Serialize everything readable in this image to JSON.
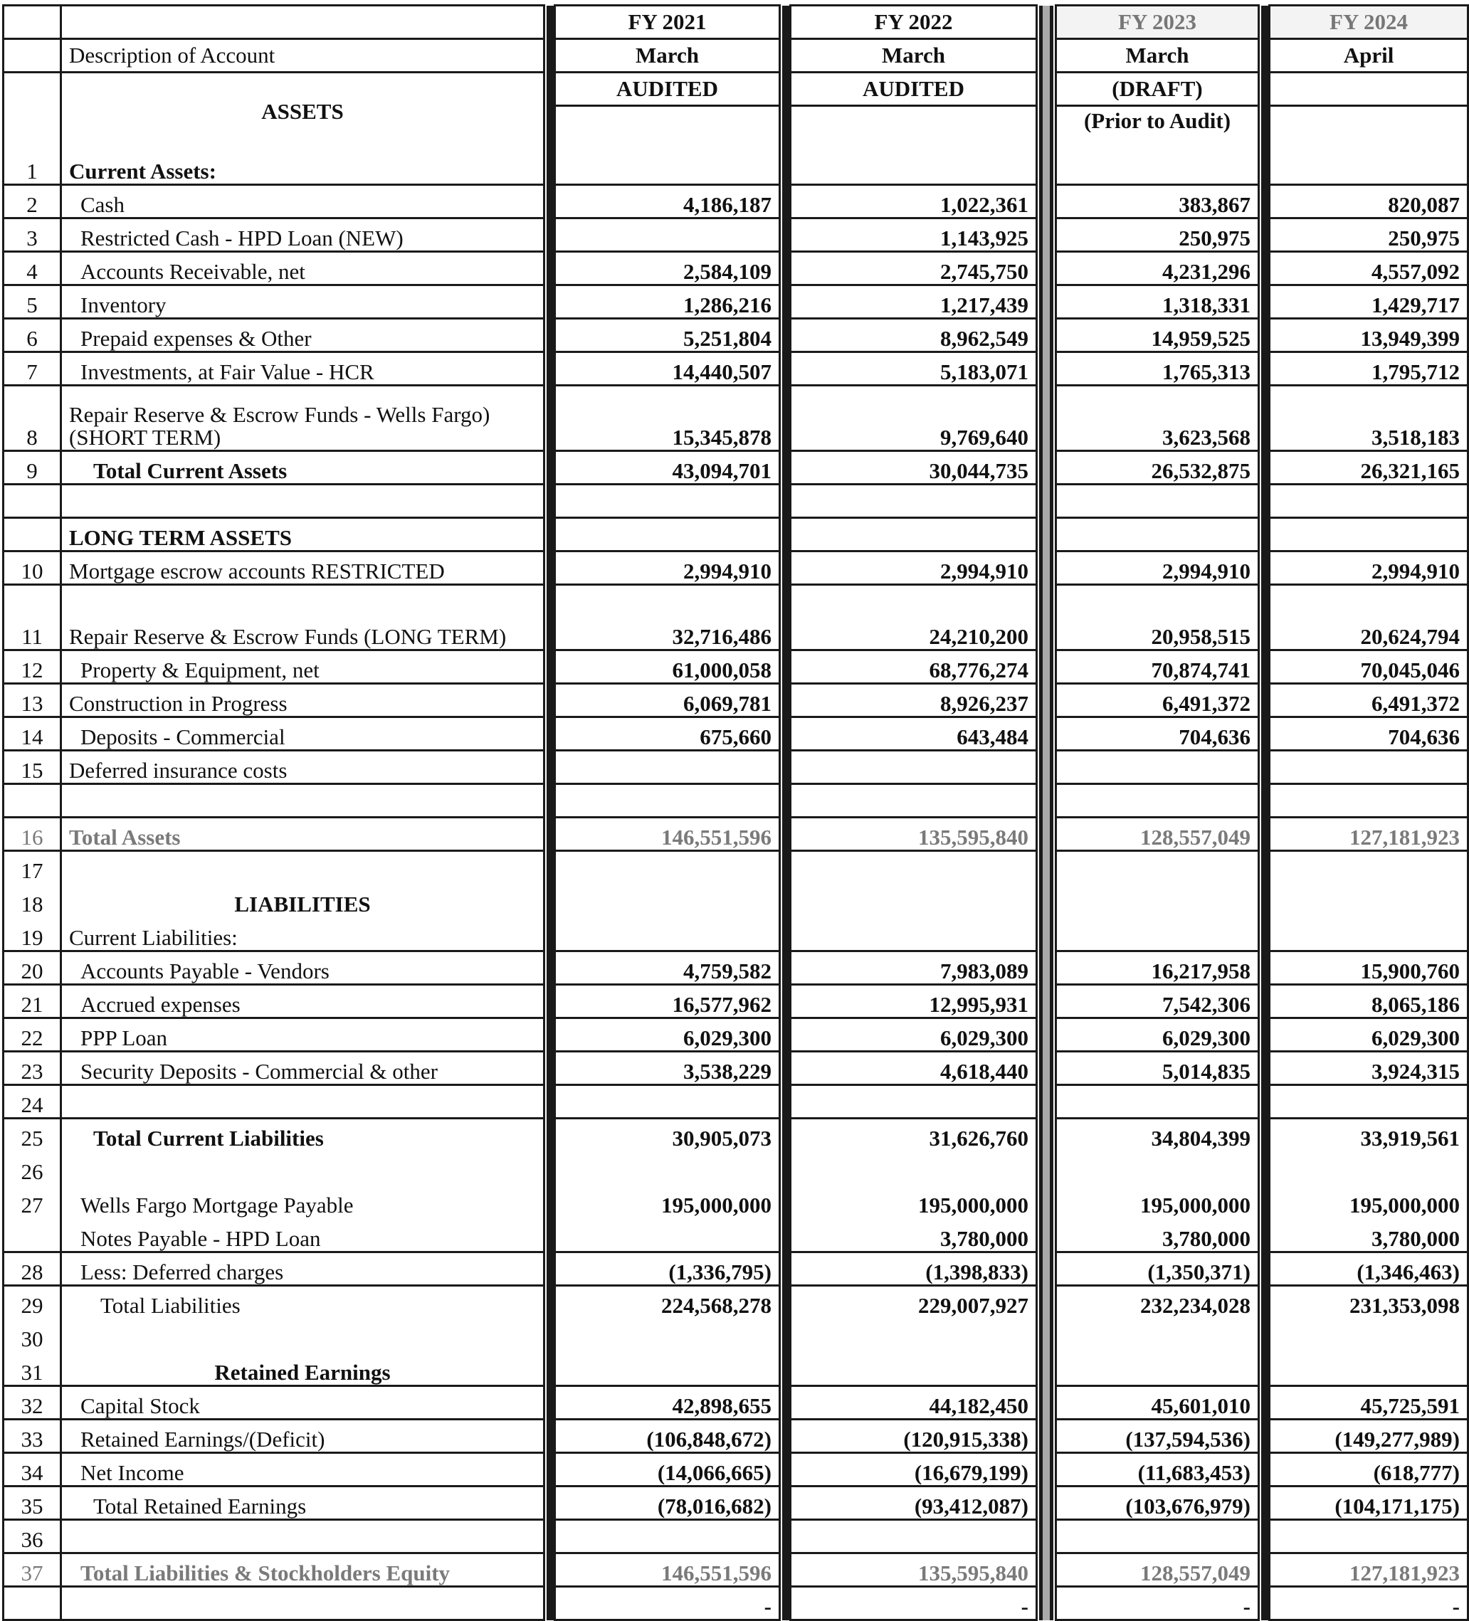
{
  "header": {
    "years": [
      "FY 2021",
      "FY 2022",
      "FY 2023",
      "FY 2024"
    ],
    "description_label": "Description of Account",
    "months": [
      "March",
      "March",
      "March",
      "April"
    ],
    "status": [
      "AUDITED",
      "AUDITED",
      "(DRAFT)",
      ""
    ],
    "status2": [
      "",
      "",
      "(Prior to Audit)",
      ""
    ],
    "assets_heading": "ASSETS"
  },
  "rows": [
    {
      "num": "1",
      "label": "Current Assets:",
      "style": "section",
      "values": [
        "",
        "",
        "",
        ""
      ]
    },
    {
      "num": "2",
      "label": "Cash",
      "indent": 1,
      "values": [
        "4,186,187",
        "1,022,361",
        "383,867",
        "820,087"
      ]
    },
    {
      "num": "3",
      "label": "Restricted Cash - HPD Loan (NEW)",
      "indent": 1,
      "values": [
        "",
        "1,143,925",
        "250,975",
        "250,975"
      ]
    },
    {
      "num": "4",
      "label": "Accounts Receivable, net",
      "indent": 1,
      "values": [
        "2,584,109",
        "2,745,750",
        "4,231,296",
        "4,557,092"
      ]
    },
    {
      "num": "5",
      "label": "Inventory",
      "indent": 1,
      "values": [
        "1,286,216",
        "1,217,439",
        "1,318,331",
        "1,429,717"
      ]
    },
    {
      "num": "6",
      "label": "Prepaid expenses & Other",
      "indent": 1,
      "values": [
        "5,251,804",
        "8,962,549",
        "14,959,525",
        "13,949,399"
      ]
    },
    {
      "num": "7",
      "label": "Investments, at Fair Value - HCR",
      "indent": 1,
      "values": [
        "14,440,507",
        "5,183,071",
        "1,765,313",
        "1,795,712"
      ]
    },
    {
      "num": "8",
      "label": "Repair Reserve & Escrow Funds - Wells Fargo) (SHORT TERM)",
      "tall": true,
      "values": [
        "15,345,878",
        "9,769,640",
        "3,623,568",
        "3,518,183"
      ]
    },
    {
      "num": "9",
      "label": "Total Current Assets",
      "style": "total",
      "indent": 2,
      "values": [
        "43,094,701",
        "30,044,735",
        "26,532,875",
        "26,321,165"
      ]
    },
    {
      "num": "",
      "label": "",
      "values": [
        "",
        "",
        "",
        ""
      ]
    },
    {
      "num": "",
      "label": "LONG TERM ASSETS",
      "style": "section",
      "values": [
        "",
        "",
        "",
        ""
      ]
    },
    {
      "num": "10",
      "label": "Mortgage escrow accounts  RESTRICTED",
      "values": [
        "2,994,910",
        "2,994,910",
        "2,994,910",
        "2,994,910"
      ]
    },
    {
      "num": "11",
      "label": "Repair Reserve & Escrow Funds (LONG TERM)",
      "tall": true,
      "values": [
        "32,716,486",
        "24,210,200",
        "20,958,515",
        "20,624,794"
      ]
    },
    {
      "num": "12",
      "label": "Property & Equipment, net",
      "indent": 1,
      "values": [
        "61,000,058",
        "68,776,274",
        "70,874,741",
        "70,045,046"
      ]
    },
    {
      "num": "13",
      "label": "Construction in Progress",
      "values": [
        "6,069,781",
        "8,926,237",
        "6,491,372",
        "6,491,372"
      ]
    },
    {
      "num": "14",
      "label": "Deposits - Commercial",
      "indent": 1,
      "values": [
        "675,660",
        "643,484",
        "704,636",
        "704,636"
      ]
    },
    {
      "num": "15",
      "label": "Deferred insurance costs",
      "values": [
        "",
        "",
        "",
        ""
      ]
    },
    {
      "num": "",
      "label": "",
      "values": [
        "",
        "",
        "",
        ""
      ]
    },
    {
      "num": "16",
      "label": "Total Assets",
      "style": "grand",
      "values": [
        "146,551,596",
        "135,595,840",
        "128,557,049",
        "127,181,923"
      ]
    },
    {
      "num": "17",
      "label": "",
      "nb": true,
      "values": [
        "",
        "",
        "",
        ""
      ]
    },
    {
      "num": "18",
      "label": "LIABILITIES",
      "style": "heading",
      "nb": true,
      "values": [
        "",
        "",
        "",
        ""
      ]
    },
    {
      "num": "19",
      "label": "Current Liabilities:",
      "values": [
        "",
        "",
        "",
        ""
      ]
    },
    {
      "num": "20",
      "label": "Accounts Payable - Vendors",
      "indent": 1,
      "values": [
        "4,759,582",
        "7,983,089",
        "16,217,958",
        "15,900,760"
      ]
    },
    {
      "num": "21",
      "label": "Accrued expenses",
      "indent": 1,
      "values": [
        "16,577,962",
        "12,995,931",
        "7,542,306",
        "8,065,186"
      ]
    },
    {
      "num": "22",
      "label": "PPP Loan",
      "indent": 1,
      "values": [
        "6,029,300",
        "6,029,300",
        "6,029,300",
        "6,029,300"
      ]
    },
    {
      "num": "23",
      "label": "Security Deposits - Commercial & other",
      "indent": 1,
      "values": [
        "3,538,229",
        "4,618,440",
        "5,014,835",
        "3,924,315"
      ]
    },
    {
      "num": "24",
      "label": "",
      "values": [
        "",
        "",
        "",
        ""
      ]
    },
    {
      "num": "25",
      "label": "Total Current Liabilities",
      "style": "total",
      "indent": 2,
      "nb": true,
      "values": [
        "30,905,073",
        "31,626,760",
        "34,804,399",
        "33,919,561"
      ]
    },
    {
      "num": "26",
      "label": "",
      "nb": true,
      "values": [
        "",
        "",
        "",
        ""
      ]
    },
    {
      "num": "27",
      "label": "Wells Fargo Mortgage Payable",
      "indent": 1,
      "nb": true,
      "values": [
        "195,000,000",
        "195,000,000",
        "195,000,000",
        "195,000,000"
      ]
    },
    {
      "num": "",
      "label": "Notes Payable - HPD Loan",
      "indent": 1,
      "values": [
        "",
        "3,780,000",
        "3,780,000",
        "3,780,000"
      ]
    },
    {
      "num": "28",
      "label": "Less:  Deferred charges",
      "indent": 1,
      "values": [
        "(1,336,795)",
        "(1,398,833)",
        "(1,350,371)",
        "(1,346,463)"
      ]
    },
    {
      "num": "29",
      "label": "Total Liabilities",
      "indent": 3,
      "nb": true,
      "values": [
        "224,568,278",
        "229,007,927",
        "232,234,028",
        "231,353,098"
      ]
    },
    {
      "num": "30",
      "label": "",
      "nb": true,
      "values": [
        "",
        "",
        "",
        ""
      ]
    },
    {
      "num": "31",
      "label": "Retained Earnings",
      "style": "heading",
      "values": [
        "",
        "",
        "",
        ""
      ]
    },
    {
      "num": "32",
      "label": "Capital Stock",
      "indent": 1,
      "values": [
        "42,898,655",
        "44,182,450",
        "45,601,010",
        "45,725,591"
      ]
    },
    {
      "num": "33",
      "label": "Retained Earnings/(Deficit)",
      "indent": 1,
      "values": [
        "(106,848,672)",
        "(120,915,338)",
        "(137,594,536)",
        "(149,277,989)"
      ]
    },
    {
      "num": "34",
      "label": "Net Income",
      "indent": 1,
      "values": [
        "(14,066,665)",
        "(16,679,199)",
        "(11,683,453)",
        "(618,777)"
      ]
    },
    {
      "num": "35",
      "label": "Total Retained Earnings",
      "indent": 2,
      "values": [
        "(78,016,682)",
        "(93,412,087)",
        "(103,676,979)",
        "(104,171,175)"
      ]
    },
    {
      "num": "36",
      "label": "",
      "values": [
        "",
        "",
        "",
        ""
      ]
    },
    {
      "num": "37",
      "label": "Total Liabilities & Stockholders Equity",
      "style": "grand",
      "indent": 1,
      "values": [
        "146,551,596",
        "135,595,840",
        "128,557,049",
        "127,181,923"
      ]
    },
    {
      "num": "",
      "label": "",
      "values": [
        "-",
        "-",
        "-",
        "-"
      ]
    }
  ]
}
